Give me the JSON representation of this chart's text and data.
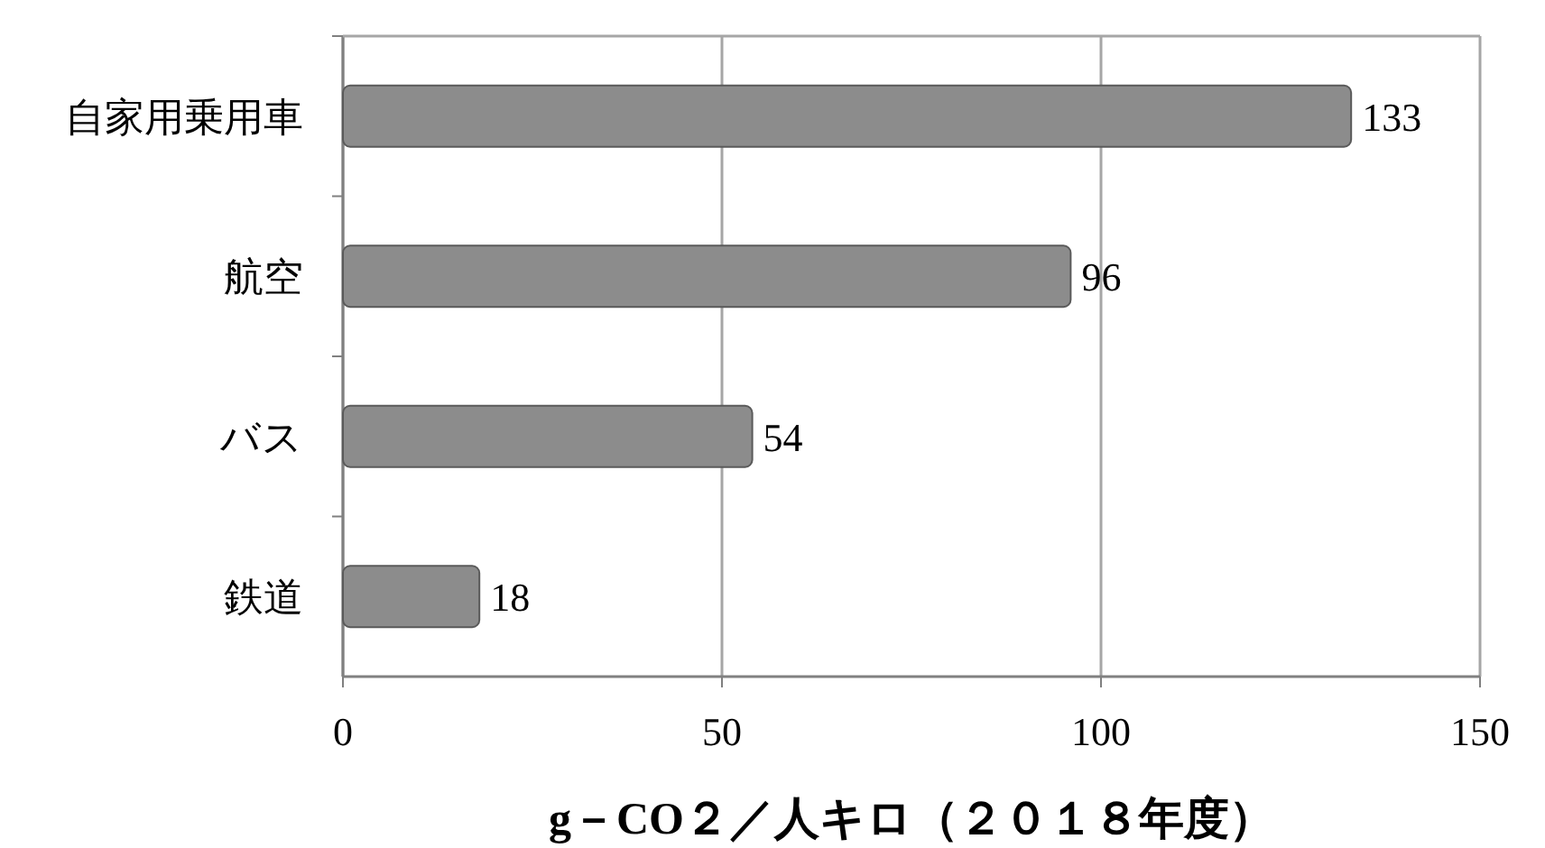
{
  "chart_data": {
    "type": "bar",
    "orientation": "horizontal",
    "xlabel": "g－CO２／人キロ（２０１８年度）",
    "categories": [
      "自家用乗用車",
      "航空",
      "バス",
      "鉄道"
    ],
    "values": [
      133,
      96,
      54,
      18
    ],
    "color": "#8c8c8c",
    "xlim": [
      0,
      150
    ],
    "xticks": [
      0,
      50,
      100,
      150
    ],
    "grid": "x",
    "data_labels": true
  }
}
